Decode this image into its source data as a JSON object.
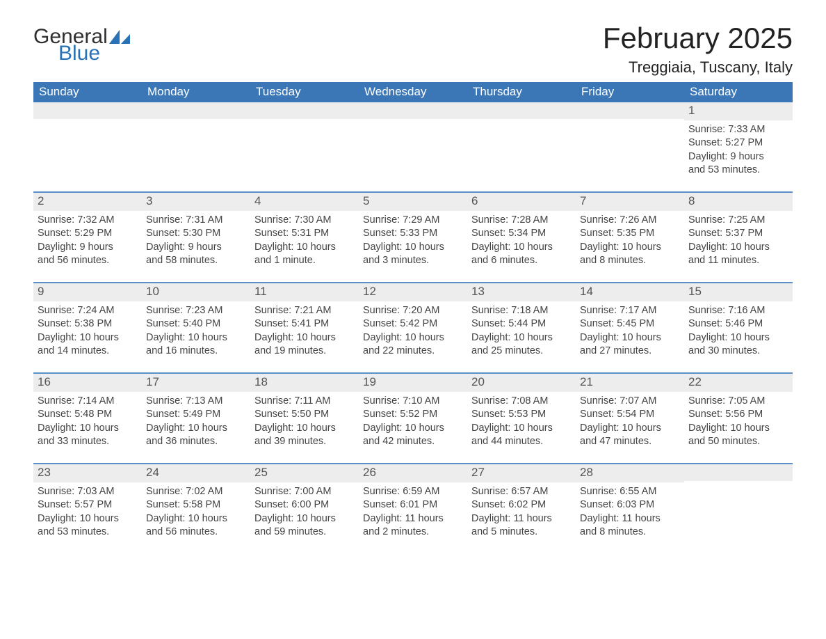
{
  "logo": {
    "word1": "General",
    "word2": "Blue"
  },
  "title": "February 2025",
  "subtitle": "Treggiaia, Tuscany, Italy",
  "colors": {
    "header_blue": "#3b77b7",
    "divider_blue": "#5a8fc7",
    "daynum_bg": "#ededed",
    "page_bg": "#ffffff",
    "text_dark": "#333333",
    "logo_gray": "#2f2f2f",
    "logo_blue": "#2972b6"
  },
  "days_of_week": [
    "Sunday",
    "Monday",
    "Tuesday",
    "Wednesday",
    "Thursday",
    "Friday",
    "Saturday"
  ],
  "weeks": [
    [
      {
        "blank": true
      },
      {
        "blank": true
      },
      {
        "blank": true
      },
      {
        "blank": true
      },
      {
        "blank": true
      },
      {
        "blank": true
      },
      {
        "day": "1",
        "sunrise": "Sunrise: 7:33 AM",
        "sunset": "Sunset: 5:27 PM",
        "daylight1": "Daylight: 9 hours",
        "daylight2": "and 53 minutes."
      }
    ],
    [
      {
        "day": "2",
        "sunrise": "Sunrise: 7:32 AM",
        "sunset": "Sunset: 5:29 PM",
        "daylight1": "Daylight: 9 hours",
        "daylight2": "and 56 minutes."
      },
      {
        "day": "3",
        "sunrise": "Sunrise: 7:31 AM",
        "sunset": "Sunset: 5:30 PM",
        "daylight1": "Daylight: 9 hours",
        "daylight2": "and 58 minutes."
      },
      {
        "day": "4",
        "sunrise": "Sunrise: 7:30 AM",
        "sunset": "Sunset: 5:31 PM",
        "daylight1": "Daylight: 10 hours",
        "daylight2": "and 1 minute."
      },
      {
        "day": "5",
        "sunrise": "Sunrise: 7:29 AM",
        "sunset": "Sunset: 5:33 PM",
        "daylight1": "Daylight: 10 hours",
        "daylight2": "and 3 minutes."
      },
      {
        "day": "6",
        "sunrise": "Sunrise: 7:28 AM",
        "sunset": "Sunset: 5:34 PM",
        "daylight1": "Daylight: 10 hours",
        "daylight2": "and 6 minutes."
      },
      {
        "day": "7",
        "sunrise": "Sunrise: 7:26 AM",
        "sunset": "Sunset: 5:35 PM",
        "daylight1": "Daylight: 10 hours",
        "daylight2": "and 8 minutes."
      },
      {
        "day": "8",
        "sunrise": "Sunrise: 7:25 AM",
        "sunset": "Sunset: 5:37 PM",
        "daylight1": "Daylight: 10 hours",
        "daylight2": "and 11 minutes."
      }
    ],
    [
      {
        "day": "9",
        "sunrise": "Sunrise: 7:24 AM",
        "sunset": "Sunset: 5:38 PM",
        "daylight1": "Daylight: 10 hours",
        "daylight2": "and 14 minutes."
      },
      {
        "day": "10",
        "sunrise": "Sunrise: 7:23 AM",
        "sunset": "Sunset: 5:40 PM",
        "daylight1": "Daylight: 10 hours",
        "daylight2": "and 16 minutes."
      },
      {
        "day": "11",
        "sunrise": "Sunrise: 7:21 AM",
        "sunset": "Sunset: 5:41 PM",
        "daylight1": "Daylight: 10 hours",
        "daylight2": "and 19 minutes."
      },
      {
        "day": "12",
        "sunrise": "Sunrise: 7:20 AM",
        "sunset": "Sunset: 5:42 PM",
        "daylight1": "Daylight: 10 hours",
        "daylight2": "and 22 minutes."
      },
      {
        "day": "13",
        "sunrise": "Sunrise: 7:18 AM",
        "sunset": "Sunset: 5:44 PM",
        "daylight1": "Daylight: 10 hours",
        "daylight2": "and 25 minutes."
      },
      {
        "day": "14",
        "sunrise": "Sunrise: 7:17 AM",
        "sunset": "Sunset: 5:45 PM",
        "daylight1": "Daylight: 10 hours",
        "daylight2": "and 27 minutes."
      },
      {
        "day": "15",
        "sunrise": "Sunrise: 7:16 AM",
        "sunset": "Sunset: 5:46 PM",
        "daylight1": "Daylight: 10 hours",
        "daylight2": "and 30 minutes."
      }
    ],
    [
      {
        "day": "16",
        "sunrise": "Sunrise: 7:14 AM",
        "sunset": "Sunset: 5:48 PM",
        "daylight1": "Daylight: 10 hours",
        "daylight2": "and 33 minutes."
      },
      {
        "day": "17",
        "sunrise": "Sunrise: 7:13 AM",
        "sunset": "Sunset: 5:49 PM",
        "daylight1": "Daylight: 10 hours",
        "daylight2": "and 36 minutes."
      },
      {
        "day": "18",
        "sunrise": "Sunrise: 7:11 AM",
        "sunset": "Sunset: 5:50 PM",
        "daylight1": "Daylight: 10 hours",
        "daylight2": "and 39 minutes."
      },
      {
        "day": "19",
        "sunrise": "Sunrise: 7:10 AM",
        "sunset": "Sunset: 5:52 PM",
        "daylight1": "Daylight: 10 hours",
        "daylight2": "and 42 minutes."
      },
      {
        "day": "20",
        "sunrise": "Sunrise: 7:08 AM",
        "sunset": "Sunset: 5:53 PM",
        "daylight1": "Daylight: 10 hours",
        "daylight2": "and 44 minutes."
      },
      {
        "day": "21",
        "sunrise": "Sunrise: 7:07 AM",
        "sunset": "Sunset: 5:54 PM",
        "daylight1": "Daylight: 10 hours",
        "daylight2": "and 47 minutes."
      },
      {
        "day": "22",
        "sunrise": "Sunrise: 7:05 AM",
        "sunset": "Sunset: 5:56 PM",
        "daylight1": "Daylight: 10 hours",
        "daylight2": "and 50 minutes."
      }
    ],
    [
      {
        "day": "23",
        "sunrise": "Sunrise: 7:03 AM",
        "sunset": "Sunset: 5:57 PM",
        "daylight1": "Daylight: 10 hours",
        "daylight2": "and 53 minutes."
      },
      {
        "day": "24",
        "sunrise": "Sunrise: 7:02 AM",
        "sunset": "Sunset: 5:58 PM",
        "daylight1": "Daylight: 10 hours",
        "daylight2": "and 56 minutes."
      },
      {
        "day": "25",
        "sunrise": "Sunrise: 7:00 AM",
        "sunset": "Sunset: 6:00 PM",
        "daylight1": "Daylight: 10 hours",
        "daylight2": "and 59 minutes."
      },
      {
        "day": "26",
        "sunrise": "Sunrise: 6:59 AM",
        "sunset": "Sunset: 6:01 PM",
        "daylight1": "Daylight: 11 hours",
        "daylight2": "and 2 minutes."
      },
      {
        "day": "27",
        "sunrise": "Sunrise: 6:57 AM",
        "sunset": "Sunset: 6:02 PM",
        "daylight1": "Daylight: 11 hours",
        "daylight2": "and 5 minutes."
      },
      {
        "day": "28",
        "sunrise": "Sunrise: 6:55 AM",
        "sunset": "Sunset: 6:03 PM",
        "daylight1": "Daylight: 11 hours",
        "daylight2": "and 8 minutes."
      },
      {
        "blank": true
      }
    ]
  ]
}
